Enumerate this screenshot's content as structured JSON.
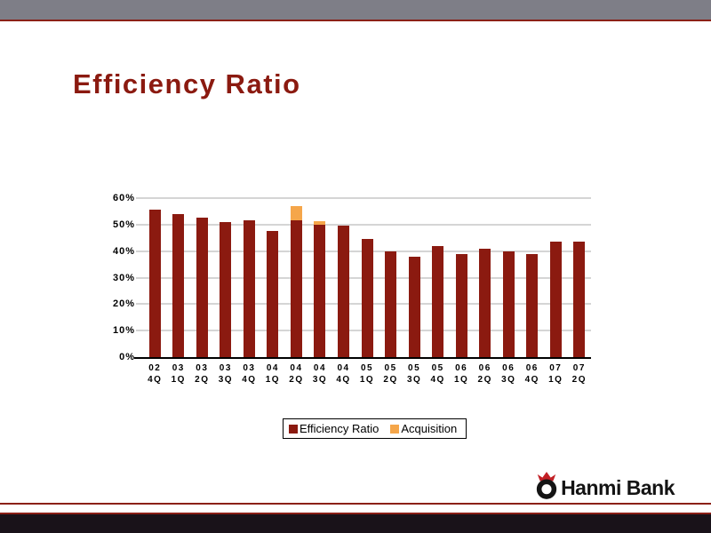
{
  "slide": {
    "title": "Efficiency Ratio"
  },
  "logo": {
    "text": "Hanmi Bank",
    "icon": "hanmi-wreath-icon",
    "ring_color": "#141414",
    "crown_color": "#C22026"
  },
  "colors": {
    "title_red": "#8B1A10",
    "bar_red": "#8B1A10",
    "acquisition_orange": "#F5A64A",
    "header_gray": "#7E7E87",
    "accent_line_red": "#8B2017",
    "gridline_gray": "#ABABAB",
    "footer_black": "#191219"
  },
  "chart_data": {
    "type": "bar",
    "stacked": true,
    "title": "",
    "xlabel": "",
    "ylabel": "",
    "categories": [
      "02 4Q",
      "03 1Q",
      "03 2Q",
      "03 3Q",
      "03 4Q",
      "04 1Q",
      "04 2Q",
      "04 3Q",
      "04 4Q",
      "05 1Q",
      "05 2Q",
      "05 3Q",
      "05 4Q",
      "06 1Q",
      "06 2Q",
      "06 3Q",
      "06 4Q",
      "07 1Q",
      "07 2Q"
    ],
    "series": [
      {
        "name": "Efficiency Ratio",
        "color": "#8B1A10",
        "values": [
          55.5,
          54.0,
          52.5,
          51.0,
          51.5,
          47.5,
          51.5,
          50.0,
          49.5,
          44.5,
          40.0,
          38.0,
          42.0,
          39.0,
          41.0,
          40.0,
          39.0,
          43.5,
          43.5
        ]
      },
      {
        "name": "Acquisition",
        "color": "#F5A64A",
        "values": [
          0,
          0,
          0,
          0,
          0,
          0,
          5.5,
          1.2,
          0,
          0,
          0,
          0,
          0,
          0,
          0,
          0,
          0,
          0,
          0
        ]
      }
    ],
    "ylim": [
      0,
      60
    ],
    "ytick_step": 10,
    "ytick_suffix": "%",
    "grid": true,
    "legend_position": "bottom-center"
  }
}
